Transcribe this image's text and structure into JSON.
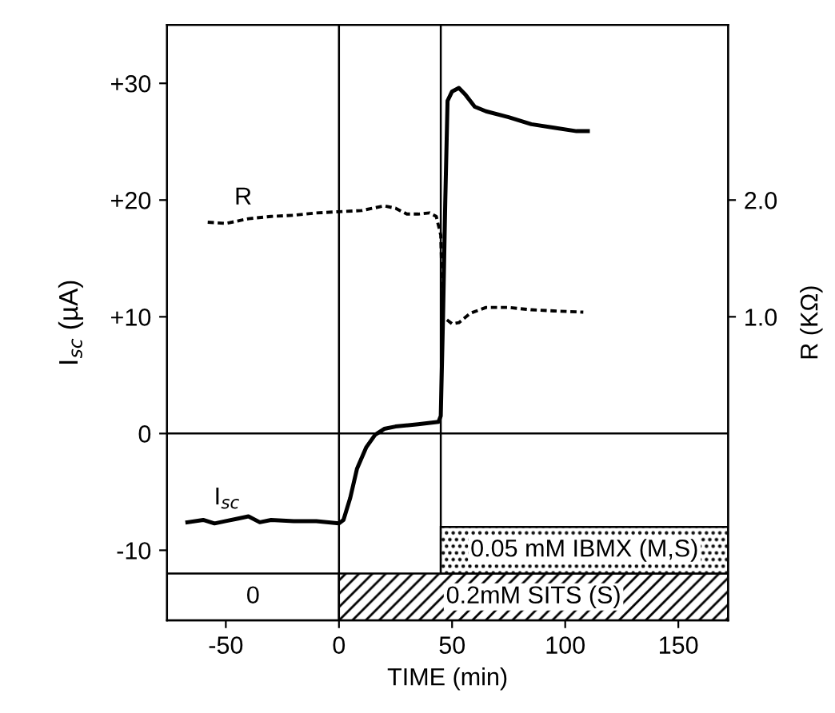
{
  "chart_data": {
    "type": "line",
    "xlabel": "TIME (min)",
    "ylabel": "I$_{sc}$ (µA)",
    "y2label": "R (KΩ)",
    "xlim": [
      -76,
      172
    ],
    "ylim": [
      -16,
      35
    ],
    "y2lim": [
      -1.6,
      3.5
    ],
    "xticks": [
      -50,
      0,
      50,
      100,
      150
    ],
    "yticks": [
      {
        "value": 30,
        "label": "+30"
      },
      {
        "value": 20,
        "label": "+20"
      },
      {
        "value": 10,
        "label": "+10"
      },
      0,
      -10
    ],
    "y2ticks": [
      {
        "value": 2.0,
        "label": "2.0"
      },
      {
        "value": 1.0,
        "label": "1.0"
      }
    ],
    "series": [
      {
        "name": "I$_{sc}$",
        "color": "#000000",
        "line_style": "solid",
        "x": [
          -67,
          -60,
          -55,
          -50,
          -45,
          -40,
          -35,
          -30,
          -20,
          -10,
          0,
          2,
          5,
          8,
          12,
          16,
          20,
          25,
          35,
          44,
          45,
          46,
          47,
          48,
          50,
          53,
          56,
          60,
          65,
          75,
          85,
          95,
          105,
          110
        ],
        "values": [
          -7.6,
          -7.4,
          -7.7,
          -7.5,
          -7.3,
          -7.1,
          -7.6,
          -7.4,
          -7.5,
          -7.5,
          -7.7,
          -7.4,
          -5.5,
          -3,
          -1.2,
          -0.1,
          0.4,
          0.6,
          0.8,
          1.0,
          1.5,
          10,
          20,
          28.5,
          29.3,
          29.6,
          29.0,
          28.0,
          27.6,
          27.1,
          26.5,
          26.2,
          25.9,
          25.9
        ]
      },
      {
        "name": "R",
        "color": "#000000",
        "line_style": "dashed",
        "axis": "y2",
        "x": [
          -58,
          -50,
          -40,
          -30,
          -20,
          -10,
          0,
          10,
          20,
          25,
          30,
          35,
          40,
          43,
          45,
          46,
          48,
          50,
          53,
          58,
          65,
          75,
          85,
          95,
          108
        ],
        "values": [
          1.81,
          1.8,
          1.84,
          1.86,
          1.87,
          1.89,
          1.9,
          1.91,
          1.95,
          1.93,
          1.88,
          1.88,
          1.89,
          1.86,
          1.7,
          1.0,
          0.97,
          0.94,
          0.95,
          1.03,
          1.08,
          1.08,
          1.06,
          1.05,
          1.04
        ]
      }
    ],
    "ref_lines": [
      {
        "axis": "x",
        "value": 0
      },
      {
        "axis": "x",
        "value": 45
      },
      {
        "axis": "y",
        "value": 0
      }
    ],
    "bands": [
      {
        "axis": "x",
        "from": -76,
        "to": 0,
        "label": "0"
      },
      {
        "axis": "x",
        "from": 0,
        "to": 172,
        "label": "0.2mM SITS (S)"
      },
      {
        "axis": "x",
        "from": 45,
        "to": 172,
        "label": "0.05 mM IBMX (M,S)"
      }
    ],
    "grid": false,
    "legend": false
  }
}
